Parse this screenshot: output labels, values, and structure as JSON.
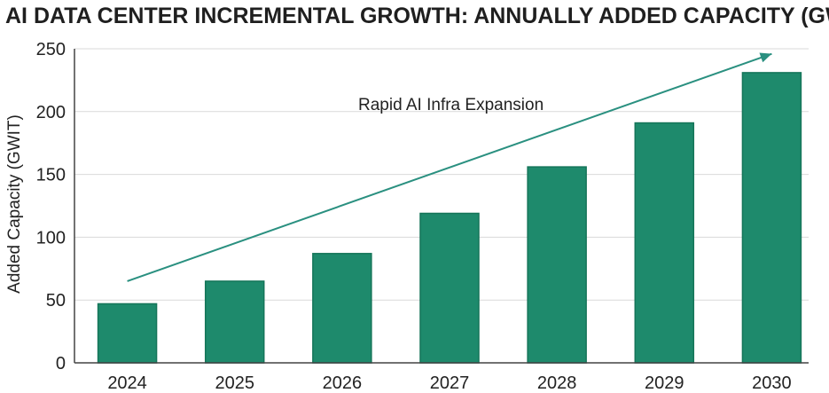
{
  "chart_data": {
    "type": "bar",
    "title": "AI DATA CENTER INCREMENTAL GROWTH: ANNUALLY ADDED CAPACITY (GWIT)",
    "xlabel": "",
    "ylabel": "Added Capacity (GWIT)",
    "categories": [
      "2024",
      "2025",
      "2026",
      "2027",
      "2028",
      "2029",
      "2030"
    ],
    "values": [
      47,
      65,
      87,
      119,
      156,
      191,
      231
    ],
    "ylim": [
      0,
      250
    ],
    "yticks": [
      0,
      50,
      100,
      150,
      200,
      250
    ],
    "grid": true,
    "annotation": {
      "text": "Rapid AI Infra Expansion",
      "arrow_from": {
        "x": "2024",
        "y": 65
      },
      "arrow_to": {
        "x": "2030",
        "y": 246
      }
    }
  },
  "colors": {
    "bar": "#1e8a6c",
    "bar_edge": "#157559",
    "arrow": "#2a9080",
    "grid": "#d9d9d9",
    "axis": "#444444"
  }
}
